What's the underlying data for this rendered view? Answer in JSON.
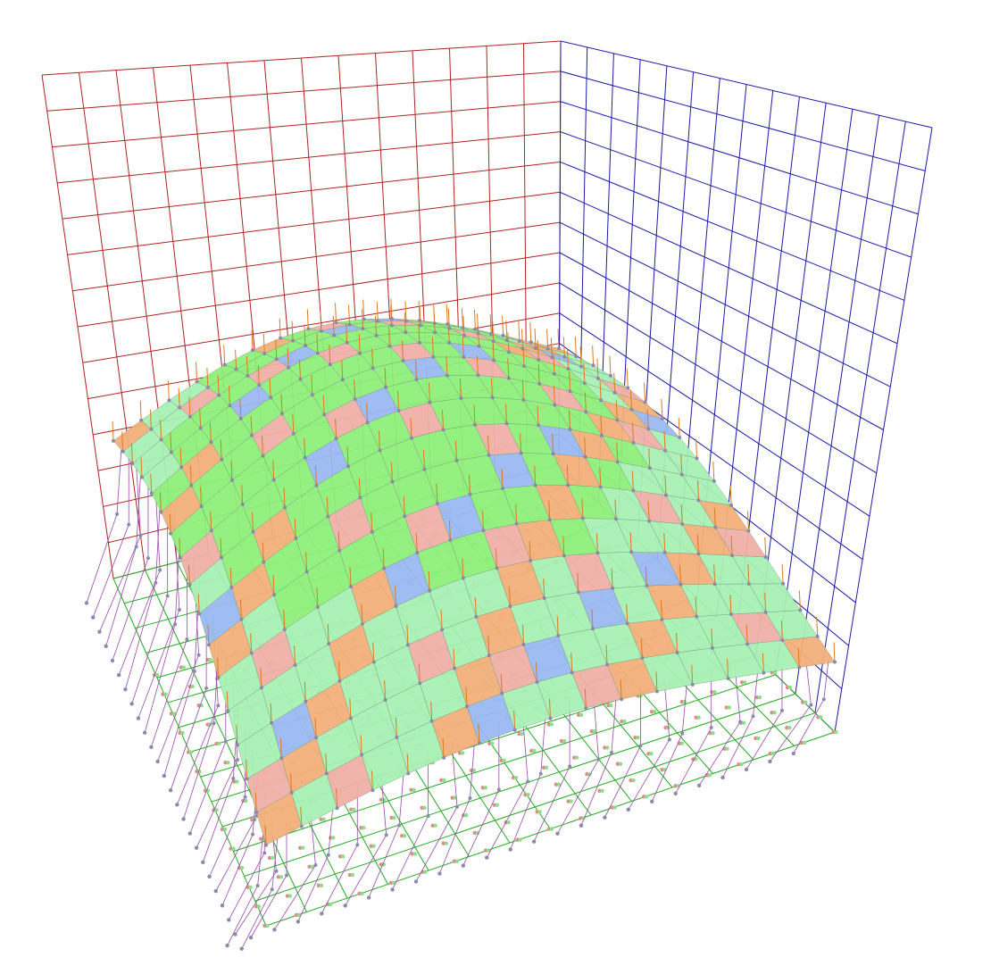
{
  "scene": {
    "background": "#ffffff",
    "grid_divisions": 14,
    "colors": {
      "back_wall_grid": "#b22222",
      "side_wall_grid": "#1a1aaa",
      "floor_grid": "#22aa22",
      "surface_high": "#8ef07a",
      "surface_mid": "#a8f0b4",
      "surface_low_orange": "#f2b07a",
      "surface_side_blue": "#9ab8f2",
      "surface_side_pink": "#f0b0a8",
      "normals": "#e07a1a",
      "mesh_points": "#8a8aaa",
      "lattice_lines": "#9a4aaa",
      "floor_dots_red": "#e08a8a",
      "floor_dots_green": "#8ae08a"
    },
    "icons": [
      "grid-back-wall",
      "grid-side-wall",
      "grid-floor",
      "height-surface",
      "normal-vectors",
      "control-lattice"
    ]
  }
}
